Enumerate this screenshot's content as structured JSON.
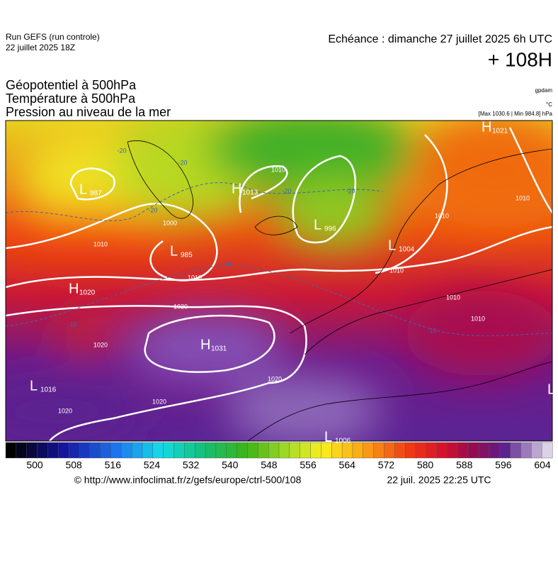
{
  "header": {
    "run": "Run GEFS (run controle)",
    "run_date": "22 juillet 2025 18Z",
    "echeance": "Echéance : dimanche 27 juillet 2025 6h UTC",
    "lead": "+ 108H"
  },
  "titles": [
    "Géopotentiel à 500hPa",
    "Température à 500hPa",
    "Pression au niveau de la mer"
  ],
  "units": {
    "geopotential": "gpdam",
    "temperature": "°C",
    "pressure": "[Max 1030.6 | Min 984.8] hPa"
  },
  "centers": [
    {
      "text": "L",
      "value": "987"
    },
    {
      "text": "H",
      "value": "1013"
    },
    {
      "text": "L",
      "value": "996"
    },
    {
      "text": "L",
      "value": "985"
    },
    {
      "text": "L",
      "value": "1004"
    },
    {
      "text": "H",
      "value": "1020"
    },
    {
      "text": "H",
      "value": "1031"
    },
    {
      "text": "L",
      "value": "1016"
    },
    {
      "text": "L",
      "value": "1006"
    },
    {
      "text": "H",
      "value": "1021"
    },
    {
      "text": "L"
    }
  ],
  "isobar_labels": [
    "1010",
    "1000",
    "1010",
    "1010",
    "1020",
    "1020",
    "1020",
    "1020",
    "1020",
    "1010",
    "1010",
    "1010",
    "1010",
    "1010"
  ],
  "temperature_labels": [
    "-20",
    "-20",
    "-20",
    "-10",
    "-10",
    "-10",
    "-20",
    "-20"
  ],
  "colorbar": {
    "ticks": [
      500,
      508,
      516,
      524,
      532,
      540,
      548,
      556,
      564,
      572,
      580,
      588,
      596,
      604
    ]
  },
  "footer": {
    "url": "© http://www.infoclimat.fr/z/gefs/europe/ctrl-500/108",
    "timestamp": "22 juil. 2025 22:25 UTC"
  }
}
